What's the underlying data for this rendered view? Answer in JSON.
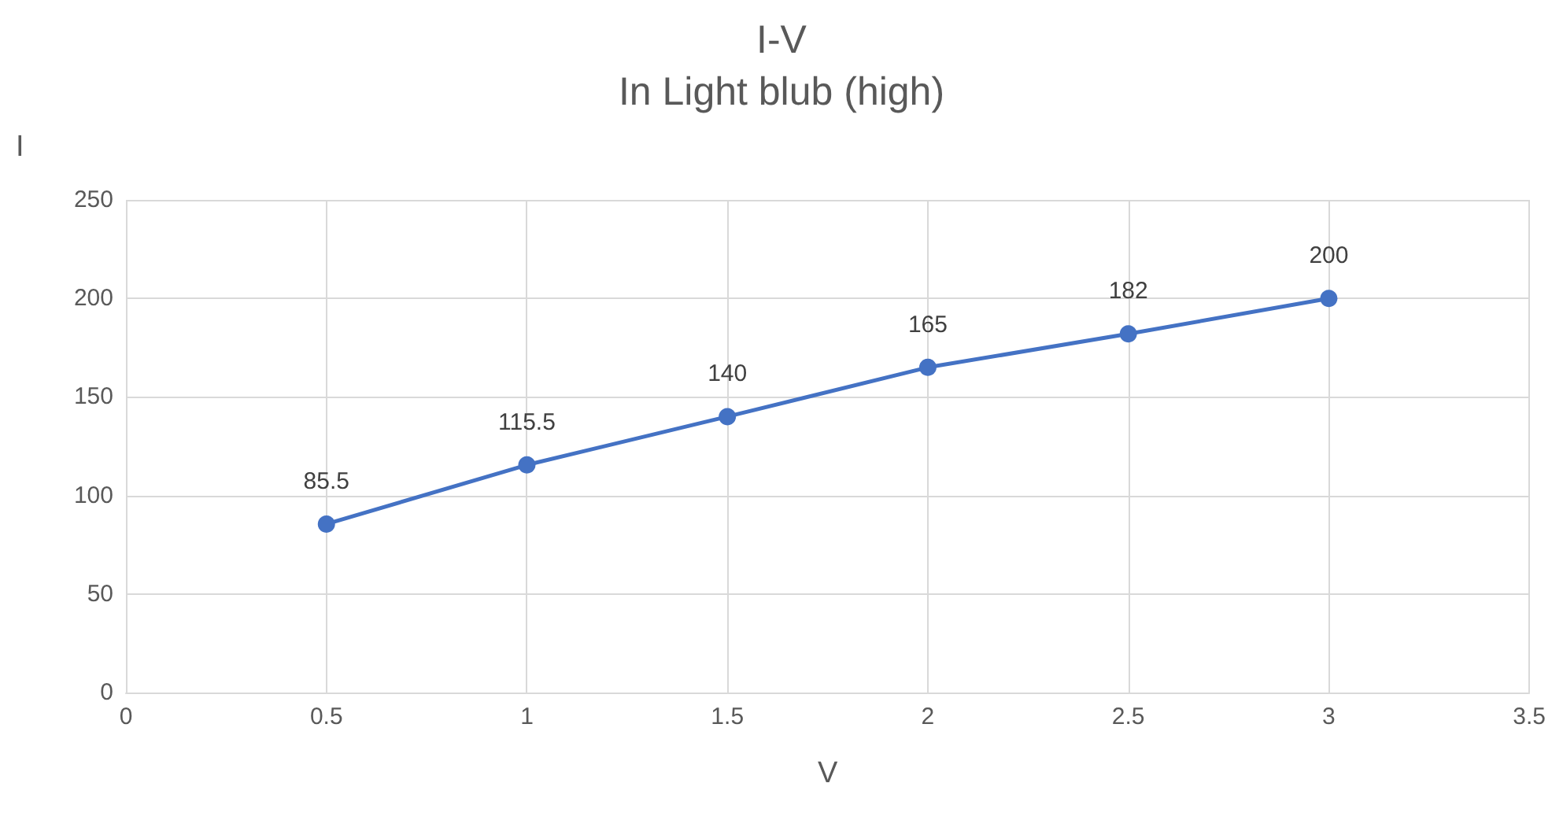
{
  "chart_data": {
    "type": "line",
    "title": "I-V",
    "subtitle": "In Light blub (high)",
    "xlabel": "V",
    "ylabel": "I",
    "x": [
      0.5,
      1,
      1.5,
      2,
      2.5,
      3
    ],
    "series": [
      {
        "color": "#4472c4",
        "values": [
          85.5,
          115.5,
          140,
          165,
          182,
          200
        ]
      }
    ],
    "xlim": [
      0,
      3.5
    ],
    "xticks": [
      0,
      0.5,
      1,
      1.5,
      2,
      2.5,
      3,
      3.5
    ],
    "ylim": [
      0,
      250
    ],
    "yticks": [
      0,
      50,
      100,
      150,
      200,
      250
    ],
    "grid": true,
    "marker": "circle",
    "line_style": "solid",
    "data_labels": true
  }
}
